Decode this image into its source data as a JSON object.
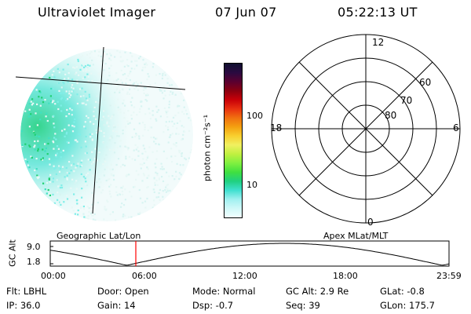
{
  "header": {
    "instrument": "Ultraviolet Imager",
    "date": "07 Jun 07",
    "time": "05:22:13 UT"
  },
  "colorbar": {
    "unit_label": "photon cm⁻²s⁻¹",
    "ticks": [
      "100",
      "10"
    ],
    "colors": [
      "#101030",
      "#2a0a40",
      "#5a0030",
      "#8a0010",
      "#c80008",
      "#e83010",
      "#f07010",
      "#f4a010",
      "#f8d030",
      "#f0f060",
      "#c0f040",
      "#80f040",
      "#40e040",
      "#20d080",
      "#40e0d0",
      "#a0f0f0",
      "#d0f8f8",
      "#f0ffff"
    ]
  },
  "image_panel": {
    "projection_label": "Geographic Lat/Lon"
  },
  "polar_panel": {
    "projection_label": "Apex MLat/MLT",
    "mlt_labels": {
      "top": "12",
      "left": "18",
      "right": "6",
      "bottom": "0"
    },
    "mlat_labels": [
      "60",
      "70",
      "80"
    ]
  },
  "altitude_plot": {
    "ylabel": "GC Alt",
    "y_ticks": [
      "9.0",
      "1.8"
    ],
    "x_ticks": [
      "00:00",
      "06:00",
      "12:00",
      "18:00",
      "23:59"
    ],
    "current_marker_color": "#ff0000"
  },
  "info": {
    "row1": {
      "flt": "Flt:  LBHL",
      "door": "Door:  Open",
      "mode": "Mode:  Normal",
      "gcalt": "GC Alt:  2.9 Re",
      "glat": "GLat:   -0.8"
    },
    "row2": {
      "ip": "IP:  36.0",
      "gain": "Gain:  14",
      "dsp": "Dsp:    -0.7",
      "seq": "Seq:  39",
      "glon": "GLon:  175.7"
    }
  }
}
